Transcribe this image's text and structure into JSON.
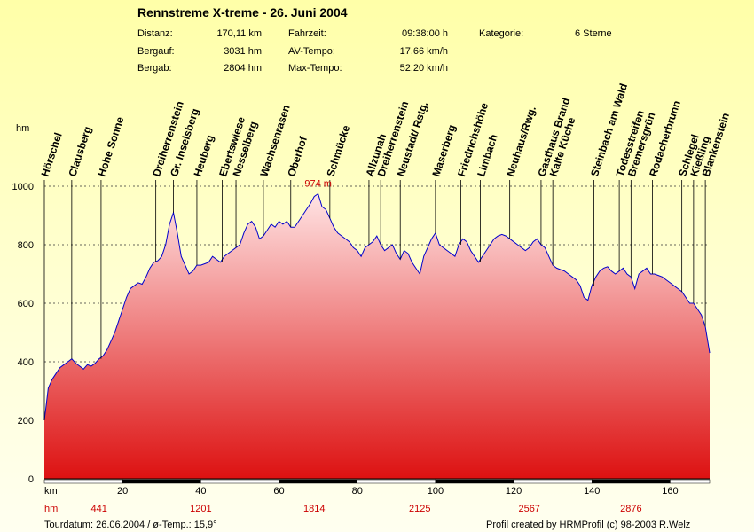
{
  "chart_data": {
    "type": "area",
    "title": "Rennstreme X-treme - 26. Juni 2004",
    "ylabel": "hm",
    "xlabel": "km",
    "xlim": [
      0,
      170.11
    ],
    "ylim": [
      0,
      1000
    ],
    "yticks": [
      0,
      200,
      400,
      600,
      800,
      1000
    ],
    "xticks": [
      20,
      40,
      60,
      80,
      100,
      120,
      140,
      160
    ],
    "ascent_row_label": "hm",
    "ascent_values": [
      {
        "x": 14,
        "label": "441"
      },
      {
        "x": 40,
        "label": "1201"
      },
      {
        "x": 69,
        "label": "1814"
      },
      {
        "x": 96,
        "label": "2125"
      },
      {
        "x": 124,
        "label": "2567"
      },
      {
        "x": 150,
        "label": "2876"
      }
    ],
    "max_label": "974 m",
    "max_point": {
      "x": 70,
      "y": 974
    },
    "grid": "dashed horizontal",
    "profile": [
      [
        0,
        200
      ],
      [
        1,
        310
      ],
      [
        2,
        340
      ],
      [
        3,
        360
      ],
      [
        4,
        380
      ],
      [
        5,
        390
      ],
      [
        6,
        400
      ],
      [
        7,
        410
      ],
      [
        8,
        395
      ],
      [
        9,
        385
      ],
      [
        10,
        375
      ],
      [
        11,
        390
      ],
      [
        12,
        385
      ],
      [
        13,
        395
      ],
      [
        14,
        410
      ],
      [
        15,
        420
      ],
      [
        16,
        440
      ],
      [
        17,
        470
      ],
      [
        18,
        500
      ],
      [
        19,
        540
      ],
      [
        20,
        580
      ],
      [
        21,
        620
      ],
      [
        22,
        650
      ],
      [
        23,
        660
      ],
      [
        24,
        670
      ],
      [
        25,
        665
      ],
      [
        26,
        690
      ],
      [
        27,
        720
      ],
      [
        28,
        740
      ],
      [
        29,
        745
      ],
      [
        30,
        760
      ],
      [
        31,
        800
      ],
      [
        32,
        870
      ],
      [
        33,
        910
      ],
      [
        34,
        840
      ],
      [
        35,
        760
      ],
      [
        36,
        730
      ],
      [
        37,
        700
      ],
      [
        38,
        710
      ],
      [
        39,
        730
      ],
      [
        40,
        730
      ],
      [
        41,
        735
      ],
      [
        42,
        740
      ],
      [
        43,
        760
      ],
      [
        44,
        750
      ],
      [
        45,
        740
      ],
      [
        46,
        760
      ],
      [
        47,
        770
      ],
      [
        48,
        780
      ],
      [
        49,
        790
      ],
      [
        50,
        800
      ],
      [
        51,
        840
      ],
      [
        52,
        870
      ],
      [
        53,
        880
      ],
      [
        54,
        860
      ],
      [
        55,
        820
      ],
      [
        56,
        830
      ],
      [
        57,
        850
      ],
      [
        58,
        870
      ],
      [
        59,
        860
      ],
      [
        60,
        880
      ],
      [
        61,
        870
      ],
      [
        62,
        880
      ],
      [
        63,
        860
      ],
      [
        64,
        860
      ],
      [
        65,
        880
      ],
      [
        66,
        900
      ],
      [
        67,
        920
      ],
      [
        68,
        940
      ],
      [
        69,
        965
      ],
      [
        70,
        974
      ],
      [
        71,
        930
      ],
      [
        72,
        920
      ],
      [
        73,
        890
      ],
      [
        74,
        860
      ],
      [
        75,
        840
      ],
      [
        76,
        830
      ],
      [
        77,
        820
      ],
      [
        78,
        810
      ],
      [
        79,
        790
      ],
      [
        80,
        780
      ],
      [
        81,
        760
      ],
      [
        82,
        790
      ],
      [
        83,
        800
      ],
      [
        84,
        810
      ],
      [
        85,
        830
      ],
      [
        86,
        800
      ],
      [
        87,
        780
      ],
      [
        88,
        790
      ],
      [
        89,
        800
      ],
      [
        90,
        770
      ],
      [
        91,
        750
      ],
      [
        92,
        780
      ],
      [
        93,
        770
      ],
      [
        94,
        740
      ],
      [
        95,
        720
      ],
      [
        96,
        700
      ],
      [
        97,
        760
      ],
      [
        98,
        790
      ],
      [
        99,
        820
      ],
      [
        100,
        840
      ],
      [
        101,
        800
      ],
      [
        102,
        790
      ],
      [
        103,
        780
      ],
      [
        104,
        770
      ],
      [
        105,
        760
      ],
      [
        106,
        800
      ],
      [
        107,
        820
      ],
      [
        108,
        810
      ],
      [
        109,
        780
      ],
      [
        110,
        760
      ],
      [
        111,
        740
      ],
      [
        112,
        760
      ],
      [
        113,
        780
      ],
      [
        114,
        800
      ],
      [
        115,
        820
      ],
      [
        116,
        830
      ],
      [
        117,
        835
      ],
      [
        118,
        830
      ],
      [
        119,
        820
      ],
      [
        120,
        810
      ],
      [
        121,
        800
      ],
      [
        122,
        790
      ],
      [
        123,
        780
      ],
      [
        124,
        790
      ],
      [
        125,
        810
      ],
      [
        126,
        820
      ],
      [
        127,
        800
      ],
      [
        128,
        790
      ],
      [
        129,
        760
      ],
      [
        130,
        730
      ],
      [
        131,
        720
      ],
      [
        132,
        715
      ],
      [
        133,
        710
      ],
      [
        134,
        700
      ],
      [
        135,
        690
      ],
      [
        136,
        680
      ],
      [
        137,
        660
      ],
      [
        138,
        620
      ],
      [
        139,
        610
      ],
      [
        140,
        660
      ],
      [
        141,
        690
      ],
      [
        142,
        710
      ],
      [
        143,
        720
      ],
      [
        144,
        725
      ],
      [
        145,
        710
      ],
      [
        146,
        700
      ],
      [
        147,
        710
      ],
      [
        148,
        720
      ],
      [
        149,
        700
      ],
      [
        150,
        690
      ],
      [
        151,
        650
      ],
      [
        152,
        700
      ],
      [
        153,
        710
      ],
      [
        154,
        720
      ],
      [
        155,
        700
      ],
      [
        156,
        700
      ],
      [
        157,
        695
      ],
      [
        158,
        690
      ],
      [
        159,
        680
      ],
      [
        160,
        670
      ],
      [
        161,
        660
      ],
      [
        162,
        650
      ],
      [
        163,
        640
      ],
      [
        164,
        620
      ],
      [
        165,
        600
      ],
      [
        166,
        600
      ],
      [
        167,
        580
      ],
      [
        168,
        560
      ],
      [
        169,
        520
      ],
      [
        170,
        440
      ],
      [
        170.11,
        430
      ]
    ],
    "waypoints": [
      {
        "name": "Hörschel",
        "x": 0
      },
      {
        "name": "Clausberg",
        "x": 7
      },
      {
        "name": "Hohe Sonne",
        "x": 14.5
      },
      {
        "name": "Dreiherrenstein",
        "x": 28.5
      },
      {
        "name": "Gr. Inselsberg",
        "x": 33
      },
      {
        "name": "Heuberg",
        "x": 39
      },
      {
        "name": "Ebertswiese",
        "x": 45.5
      },
      {
        "name": "Nesselberg",
        "x": 49
      },
      {
        "name": "Wachsenrasen",
        "x": 56
      },
      {
        "name": "Oberhof",
        "x": 63
      },
      {
        "name": "Schmücke",
        "x": 73
      },
      {
        "name": "Allzunah",
        "x": 83
      },
      {
        "name": "Dreiherrenstein",
        "x": 86
      },
      {
        "name": "Neustadt/ Rstg.",
        "x": 91
      },
      {
        "name": "Maserberg",
        "x": 100
      },
      {
        "name": "Friedrichshöhe",
        "x": 106.5
      },
      {
        "name": "Limbach",
        "x": 111.5
      },
      {
        "name": "Neuhaus/Rwg.",
        "x": 119
      },
      {
        "name": "Gasthaus Brand",
        "x": 127
      },
      {
        "name": "Kalte Küche",
        "x": 130
      },
      {
        "name": "Steinbach am Wald",
        "x": 140.5
      },
      {
        "name": "Todesstreifen",
        "x": 147
      },
      {
        "name": "Bremersgrün",
        "x": 150
      },
      {
        "name": "Rodacherbrunn",
        "x": 155.5
      },
      {
        "name": "Schlegel",
        "x": 163
      },
      {
        "name": "Kießling",
        "x": 166
      },
      {
        "name": "Blankenstein",
        "x": 169
      }
    ]
  },
  "stats": {
    "distance_label": "Distanz:",
    "distance_value": "170,11 km",
    "ascent_label": "Bergauf:",
    "ascent_value": "3031 hm",
    "descent_label": "Bergab:",
    "descent_value": "2804 hm",
    "time_label": "Fahrzeit:",
    "time_value": "09:38:00 h",
    "avg_label": "AV-Tempo:",
    "avg_value": "17,66 km/h",
    "max_label": "Max-Tempo:",
    "max_value": "52,20 km/h",
    "category_label": "Kategorie:",
    "category_value": "6 Sterne"
  },
  "footer": {
    "left": "Tourdatum: 26.06.2004  /  ø-Temp.: 15,9°",
    "right": "Profil created by HRMProfil (c) 98-2003 R.Welz"
  },
  "colors": {
    "fill_top": "#ffe4e4",
    "fill_bottom": "#dd1111",
    "line": "#0000cc",
    "axis_red_text": "#cc0000",
    "background": "#ffffc0"
  }
}
